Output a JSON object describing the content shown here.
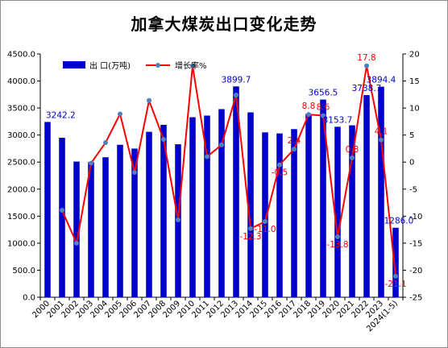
{
  "chart_data": {
    "type": "bar+line",
    "title": "加拿大煤炭出口变化走势",
    "categories": [
      "2000",
      "2001",
      "2002",
      "2003",
      "2004",
      "2005",
      "2006",
      "2007",
      "2008",
      "2009",
      "2010",
      "2011",
      "2012",
      "2013",
      "2014",
      "2015",
      "2016",
      "2017",
      "2018",
      "2019",
      "2020",
      "2021",
      "2022",
      "2023",
      "2024(1-5)"
    ],
    "series": [
      {
        "name": "出 口(万吨)",
        "kind": "bar",
        "axis": "left",
        "color": "#0000cc",
        "values": [
          3242.2,
          2950,
          2510,
          2500,
          2590,
          2820,
          2750,
          3060,
          3190,
          2830,
          3330,
          3360,
          3480,
          3899.7,
          3420,
          3050,
          3030,
          3110,
          3390,
          3656.5,
          3153.7,
          3180,
          3738.7,
          3894.4,
          1286.0
        ]
      },
      {
        "name": "增长率%",
        "kind": "line",
        "axis": "right",
        "color": "#ff0000",
        "marker_color": "#4f81bd",
        "values": [
          null,
          -8.9,
          -15.0,
          -0.2,
          3.6,
          8.9,
          -1.9,
          11.4,
          4.2,
          -10.7,
          17.8,
          1.0,
          3.2,
          12.4,
          -12.3,
          -11.0,
          -0.5,
          2.4,
          8.8,
          8.6,
          -13.8,
          0.8,
          17.8,
          4.1,
          -21.1
        ]
      }
    ],
    "y_left": {
      "min": 0,
      "max": 4500,
      "step": 500,
      "tick_labels": [
        "0.0",
        "500.0",
        "1000.0",
        "1500.0",
        "2000.0",
        "2500.0",
        "3000.0",
        "3500.0",
        "4000.0",
        "4500.0"
      ]
    },
    "y_right": {
      "min": -25,
      "max": 20,
      "step": 5,
      "tick_labels": [
        "-25",
        "-20",
        "-15",
        "-10",
        "-5",
        "0",
        "5",
        "10",
        "15",
        "20"
      ]
    },
    "grid": false,
    "legend": "top-left",
    "bar_labels": [
      {
        "index": 0,
        "text": "3242.2"
      },
      {
        "index": 13,
        "text": "3899.7"
      },
      {
        "index": 19,
        "text": "3656.5"
      },
      {
        "index": 20,
        "text": "3153.7"
      },
      {
        "index": 22,
        "text": "3738.7"
      },
      {
        "index": 23,
        "text": "3894.4"
      },
      {
        "index": 24,
        "text": "1286.0"
      }
    ],
    "line_labels": [
      {
        "index": 14,
        "text": "-12.3"
      },
      {
        "index": 15,
        "text": "-11.0"
      },
      {
        "index": 16,
        "text": "-0.5"
      },
      {
        "index": 17,
        "text": "2.4"
      },
      {
        "index": 18,
        "text": "8.8"
      },
      {
        "index": 19,
        "text": "8.6"
      },
      {
        "index": 20,
        "text": "-13.8"
      },
      {
        "index": 21,
        "text": "0.8"
      },
      {
        "index": 22,
        "text": "17.8"
      },
      {
        "index": 23,
        "text": "4.1"
      },
      {
        "index": 24,
        "text": "-21.1"
      }
    ]
  }
}
